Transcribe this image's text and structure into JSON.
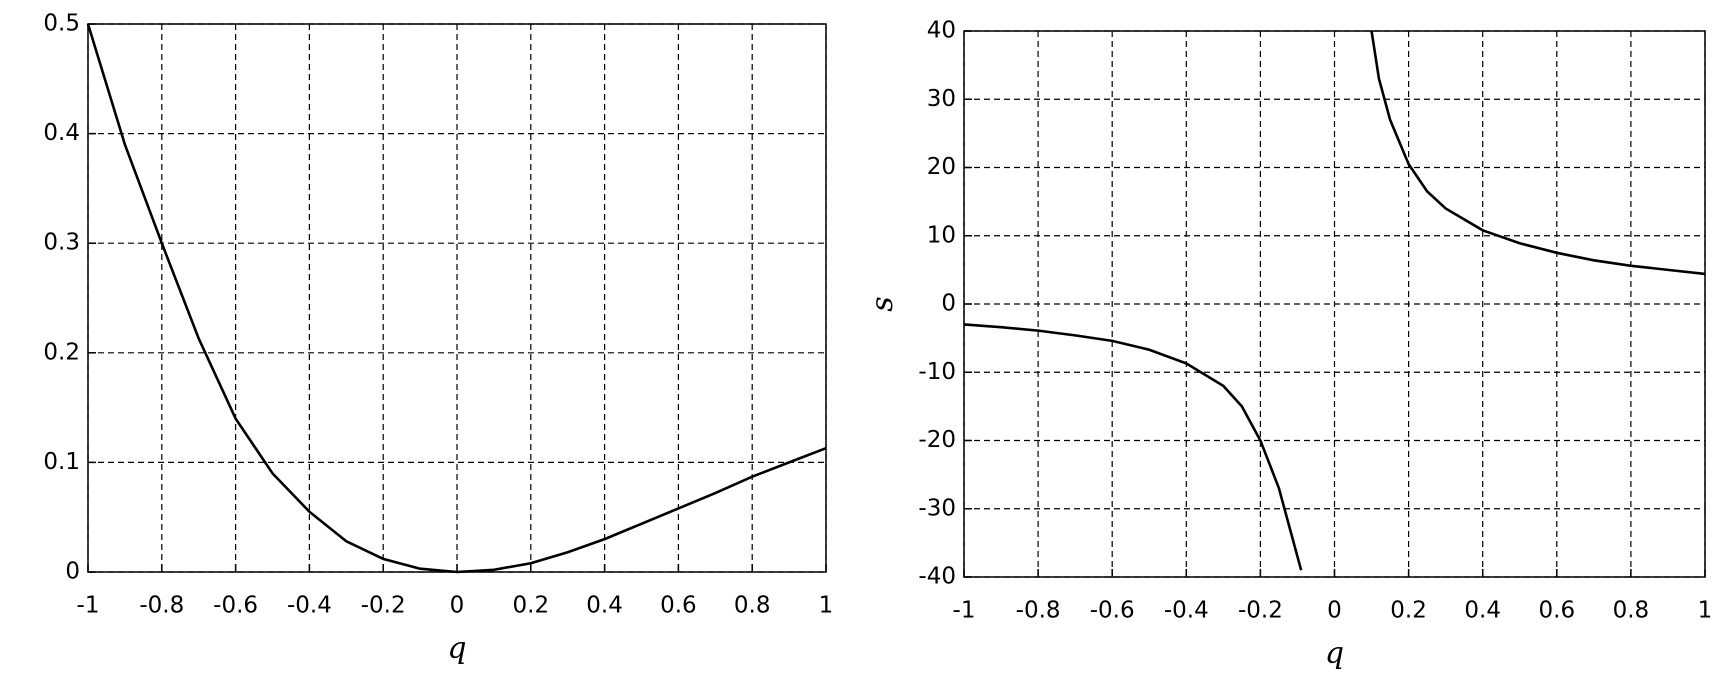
{
  "chart_data": [
    {
      "type": "line",
      "x_label": "q",
      "color": "#000000",
      "grid": true,
      "x": [
        -1,
        -0.9,
        -0.8,
        -0.7,
        -0.6,
        -0.5,
        -0.4,
        -0.3,
        -0.2,
        -0.1,
        0,
        0.1,
        0.2,
        0.3,
        0.4,
        0.5,
        0.6,
        0.7,
        0.8,
        0.9,
        1
      ],
      "values": [
        0.5,
        0.39,
        0.3,
        0.213,
        0.14,
        0.09,
        0.055,
        0.028,
        0.012,
        0.003,
        0,
        0.002,
        0.008,
        0.018,
        0.03,
        0.044,
        0.058,
        0.072,
        0.087,
        0.1,
        0.113
      ],
      "xlim": [
        -1,
        1
      ],
      "xticks": [
        -1,
        -0.8,
        -0.6,
        -0.4,
        -0.2,
        0,
        0.2,
        0.4,
        0.6,
        0.8,
        1
      ],
      "ylim": [
        0,
        0.5
      ],
      "yticks": [
        0,
        0.1,
        0.2,
        0.3,
        0.4,
        0.5
      ]
    },
    {
      "type": "line",
      "x_label": "q",
      "y_label": "s",
      "color": "#000000",
      "grid": true,
      "x": [
        -1,
        -0.9,
        -0.8,
        -0.7,
        -0.6,
        -0.5,
        -0.4,
        -0.3,
        -0.25,
        -0.2,
        -0.15,
        -0.12,
        -0.09,
        0,
        0.1,
        0.12,
        0.15,
        0.2,
        0.25,
        0.3,
        0.4,
        0.5,
        0.6,
        0.7,
        0.8,
        0.9,
        1
      ],
      "values": [
        -3,
        -3.4,
        -3.9,
        -4.6,
        -5.4,
        -6.7,
        -8.7,
        -12,
        -15,
        -20,
        -27,
        -33,
        -39,
        null,
        40,
        33,
        27,
        20.5,
        16.5,
        14,
        10.8,
        8.9,
        7.5,
        6.4,
        5.6,
        5,
        4.4
      ],
      "xlim": [
        -1,
        1
      ],
      "xticks": [
        -1,
        -0.8,
        -0.6,
        -0.4,
        -0.2,
        0,
        0.2,
        0.4,
        0.6,
        0.8,
        1
      ],
      "ylim": [
        -40,
        40
      ],
      "yticks": [
        -40,
        -30,
        -20,
        -10,
        0,
        10,
        20,
        30,
        40
      ]
    }
  ]
}
